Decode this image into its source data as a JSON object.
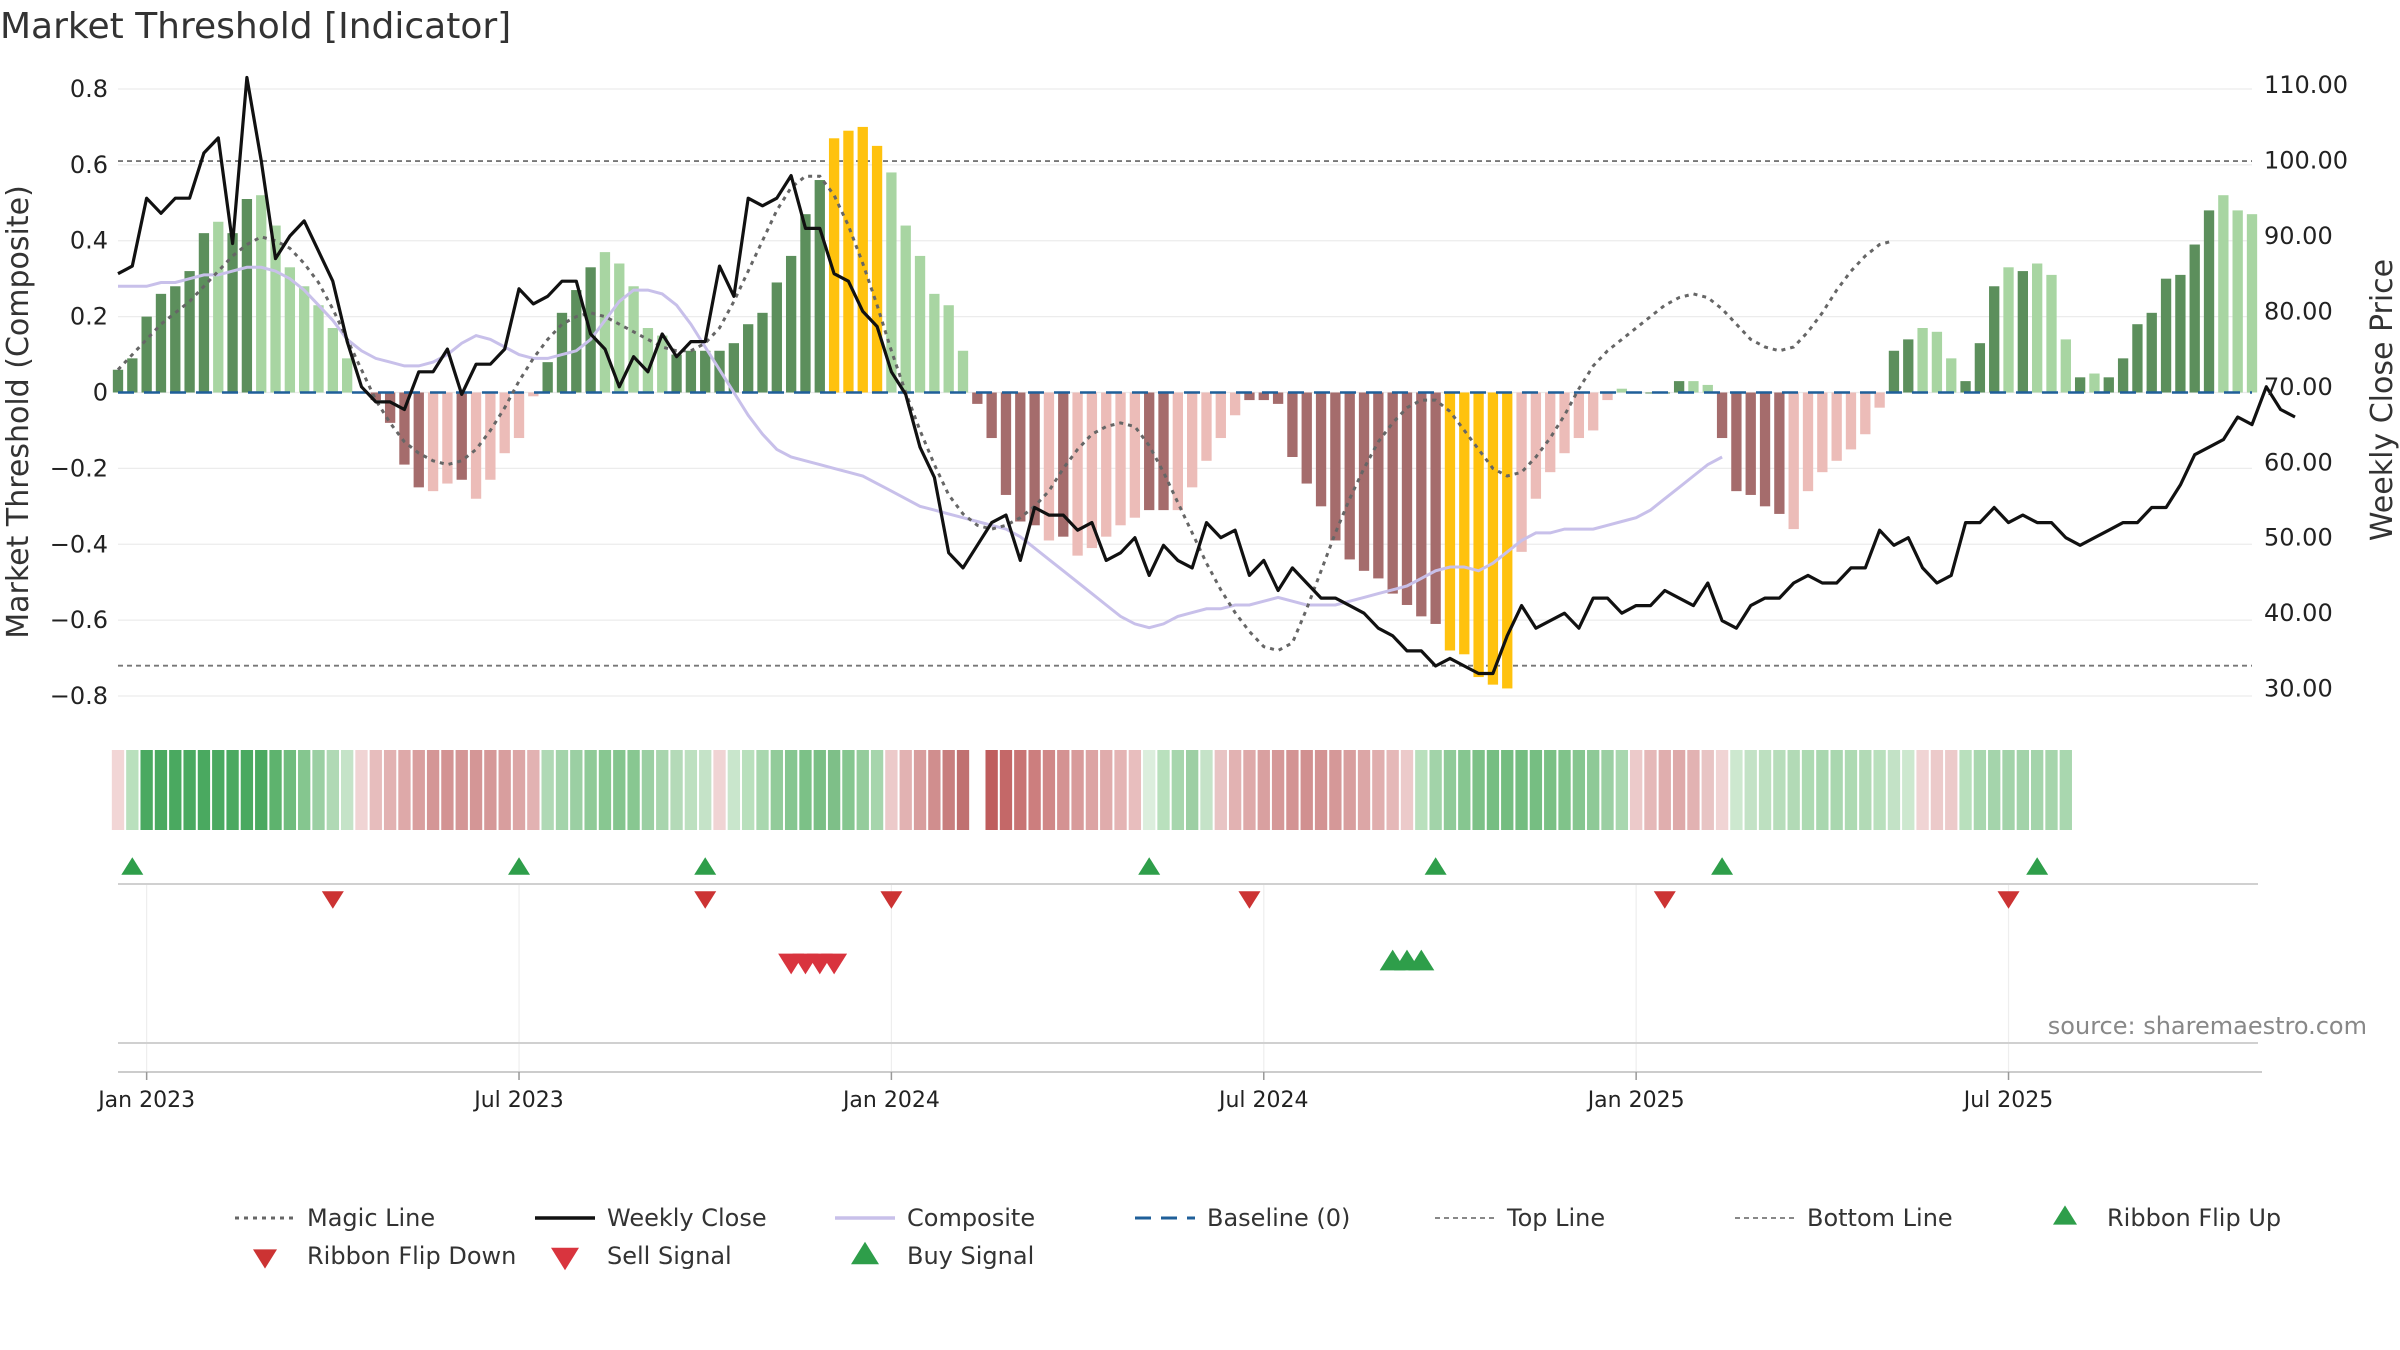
{
  "title": "Market Threshold [Indicator]",
  "source_label": "source: sharemaestro.com",
  "colors": {
    "bar_pos_strong": "#5c8f5c",
    "bar_pos_weak": "#a8d5a2",
    "bar_neg_strong": "#a56c6c",
    "bar_neg_weak": "#ecbcb8",
    "bar_extreme": "#ffc20e",
    "weekly_close": "#111111",
    "magic_line": "#666666",
    "composite": "#c8c0ea",
    "baseline": "#1f5f99",
    "ref_lines": "#777777",
    "buy": "#2e9e4a",
    "sell": "#d9343e",
    "flip_up": "#2e9e4a",
    "flip_down": "#cc3333"
  },
  "chart_data": {
    "type": "bar",
    "title": "Market Threshold [Indicator]",
    "ylabel_left": "Market Threshold (Composite)",
    "ylabel_right": "Weekly Close Price",
    "ylim_left": [
      -0.85,
      0.85
    ],
    "ylim_right": [
      26.5,
      112
    ],
    "left_ticks": [
      {
        "v": 0.8,
        "label": "0.8"
      },
      {
        "v": 0.6,
        "label": "0.6"
      },
      {
        "v": 0.4,
        "label": "0.4"
      },
      {
        "v": 0.2,
        "label": "0.2"
      },
      {
        "v": 0,
        "label": "0"
      },
      {
        "v": -0.2,
        "label": "−0.2"
      },
      {
        "v": -0.4,
        "label": "−0.4"
      },
      {
        "v": -0.6,
        "label": "−0.6"
      },
      {
        "v": -0.8,
        "label": "−0.8"
      }
    ],
    "right_ticks": [
      {
        "v": 110,
        "label": "110.00"
      },
      {
        "v": 100,
        "label": "100.00"
      },
      {
        "v": 90,
        "label": "90.00"
      },
      {
        "v": 80,
        "label": "80.00"
      },
      {
        "v": 70,
        "label": "70.00"
      },
      {
        "v": 60,
        "label": "60.00"
      },
      {
        "v": 50,
        "label": "50.00"
      },
      {
        "v": 40,
        "label": "40.00"
      },
      {
        "v": 30,
        "label": "30.00"
      }
    ],
    "x_ticks": [
      {
        "week": 2,
        "label": "Jan 2023"
      },
      {
        "week": 28,
        "label": "Jul 2023"
      },
      {
        "week": 54,
        "label": "Jan 2024"
      },
      {
        "week": 80,
        "label": "Jul 2024"
      },
      {
        "week": 106,
        "label": "Jan 2025"
      },
      {
        "week": 132,
        "label": "Jul 2025"
      }
    ],
    "top_line": 0.61,
    "bottom_line": -0.72,
    "baseline": 0,
    "composite_bars": [
      0.06,
      0.09,
      0.2,
      0.26,
      0.28,
      0.32,
      0.42,
      0.45,
      0.42,
      0.51,
      0.52,
      0.44,
      0.33,
      0.28,
      0.23,
      0.17,
      0.09,
      0.0,
      -0.02,
      -0.08,
      -0.19,
      -0.25,
      -0.26,
      -0.24,
      -0.23,
      -0.28,
      -0.23,
      -0.16,
      -0.12,
      -0.01,
      0.08,
      0.21,
      0.27,
      0.33,
      0.37,
      0.34,
      0.28,
      0.17,
      0.15,
      0.1,
      0.11,
      0.11,
      0.11,
      0.13,
      0.18,
      0.21,
      0.29,
      0.36,
      0.47,
      0.56,
      0.67,
      0.69,
      0.7,
      0.65,
      0.58,
      0.44,
      0.36,
      0.26,
      0.23,
      0.11,
      -0.03,
      -0.12,
      -0.27,
      -0.34,
      -0.35,
      -0.39,
      -0.38,
      -0.43,
      -0.41,
      -0.38,
      -0.35,
      -0.33,
      -0.31,
      -0.31,
      -0.31,
      -0.25,
      -0.18,
      -0.12,
      -0.06,
      -0.02,
      -0.02,
      -0.03,
      -0.17,
      -0.24,
      -0.3,
      -0.39,
      -0.44,
      -0.47,
      -0.49,
      -0.53,
      -0.56,
      -0.59,
      -0.61,
      -0.68,
      -0.69,
      -0.75,
      -0.77,
      -0.78,
      -0.42,
      -0.28,
      -0.21,
      -0.16,
      -0.12,
      -0.1,
      -0.02,
      0.01,
      0.0,
      0.0,
      0.0,
      0.03,
      0.03,
      0.02,
      -0.12,
      -0.26,
      -0.27,
      -0.3,
      -0.32,
      -0.36,
      -0.26,
      -0.21,
      -0.18,
      -0.15,
      -0.11,
      -0.04,
      0.11,
      0.14,
      0.17,
      0.16,
      0.09,
      0.03,
      0.13,
      0.28,
      0.33,
      0.32,
      0.34,
      0.31,
      0.14,
      0.04,
      0.05,
      0.04,
      0.09,
      0.18,
      0.21,
      0.3,
      0.31,
      0.39,
      0.48,
      0.52,
      0.48,
      0.47
    ],
    "weekly_close": [
      85,
      86,
      95,
      93,
      95,
      95,
      101,
      103,
      89,
      111,
      100,
      87,
      90,
      92,
      88,
      84,
      76,
      70,
      68,
      68,
      67,
      72,
      72,
      75,
      69,
      73,
      73,
      75,
      83,
      81,
      82,
      84,
      84,
      77,
      75,
      70,
      74,
      72,
      77,
      74,
      76,
      76,
      86,
      82,
      95,
      94,
      95,
      98,
      91,
      91,
      85,
      84,
      80,
      78,
      72,
      69,
      62,
      58,
      48,
      46,
      49,
      52,
      53,
      47,
      54,
      53,
      53,
      51,
      52,
      47,
      48,
      50,
      45,
      49,
      47,
      46,
      52,
      50,
      51,
      45,
      47,
      43,
      46,
      44,
      42,
      42,
      41,
      40,
      38,
      37,
      35,
      35,
      33,
      34,
      33,
      32,
      32,
      37,
      41,
      38,
      39,
      40,
      38,
      42,
      42,
      40,
      41,
      41,
      43,
      42,
      41,
      44,
      39,
      38,
      41,
      42,
      42,
      44,
      45,
      44,
      44,
      46,
      46,
      51,
      49,
      50,
      46,
      44,
      45,
      52,
      52,
      54,
      52,
      53,
      52,
      52,
      50,
      49,
      50,
      51,
      52,
      52,
      54,
      54,
      57,
      61,
      62,
      63,
      66,
      65,
      70,
      67,
      66
    ],
    "magic_line": [
      0.06,
      0.1,
      0.14,
      0.18,
      0.21,
      0.24,
      0.28,
      0.32,
      0.36,
      0.39,
      0.41,
      0.4,
      0.38,
      0.34,
      0.29,
      0.22,
      0.14,
      0.06,
      -0.02,
      -0.08,
      -0.13,
      -0.16,
      -0.18,
      -0.19,
      -0.18,
      -0.15,
      -0.1,
      -0.04,
      0.03,
      0.09,
      0.14,
      0.18,
      0.2,
      0.21,
      0.2,
      0.18,
      0.16,
      0.14,
      0.12,
      0.11,
      0.11,
      0.13,
      0.17,
      0.24,
      0.32,
      0.4,
      0.48,
      0.54,
      0.57,
      0.57,
      0.52,
      0.44,
      0.34,
      0.23,
      0.11,
      0.0,
      -0.1,
      -0.19,
      -0.27,
      -0.32,
      -0.35,
      -0.36,
      -0.35,
      -0.33,
      -0.3,
      -0.26,
      -0.2,
      -0.15,
      -0.11,
      -0.09,
      -0.08,
      -0.09,
      -0.14,
      -0.21,
      -0.29,
      -0.37,
      -0.45,
      -0.52,
      -0.58,
      -0.63,
      -0.67,
      -0.68,
      -0.66,
      -0.57,
      -0.47,
      -0.37,
      -0.28,
      -0.2,
      -0.13,
      -0.08,
      -0.04,
      -0.02,
      -0.02,
      -0.05,
      -0.1,
      -0.15,
      -0.2,
      -0.22,
      -0.21,
      -0.17,
      -0.12,
      -0.06,
      0.01,
      0.07,
      0.11,
      0.14,
      0.17,
      0.2,
      0.23,
      0.25,
      0.26,
      0.25,
      0.22,
      0.18,
      0.14,
      0.12,
      0.11,
      0.12,
      0.16,
      0.21,
      0.27,
      0.32,
      0.36,
      0.39,
      0.4
    ],
    "composite_line": [
      0.28,
      0.28,
      0.28,
      0.29,
      0.29,
      0.3,
      0.31,
      0.31,
      0.32,
      0.33,
      0.33,
      0.32,
      0.3,
      0.27,
      0.23,
      0.19,
      0.14,
      0.11,
      0.09,
      0.08,
      0.07,
      0.07,
      0.08,
      0.1,
      0.13,
      0.15,
      0.14,
      0.12,
      0.1,
      0.09,
      0.09,
      0.1,
      0.11,
      0.14,
      0.19,
      0.24,
      0.27,
      0.27,
      0.26,
      0.23,
      0.18,
      0.12,
      0.06,
      0.0,
      -0.06,
      -0.11,
      -0.15,
      -0.17,
      -0.18,
      -0.19,
      -0.2,
      -0.21,
      -0.22,
      -0.24,
      -0.26,
      -0.28,
      -0.3,
      -0.31,
      -0.32,
      -0.33,
      -0.34,
      -0.35,
      -0.36,
      -0.38,
      -0.41,
      -0.44,
      -0.47,
      -0.5,
      -0.53,
      -0.56,
      -0.59,
      -0.61,
      -0.62,
      -0.61,
      -0.59,
      -0.58,
      -0.57,
      -0.57,
      -0.56,
      -0.56,
      -0.55,
      -0.54,
      -0.55,
      -0.56,
      -0.56,
      -0.56,
      -0.55,
      -0.54,
      -0.53,
      -0.52,
      -0.51,
      -0.49,
      -0.47,
      -0.46,
      -0.46,
      -0.47,
      -0.45,
      -0.42,
      -0.39,
      -0.37,
      -0.37,
      -0.36,
      -0.36,
      -0.36,
      -0.35,
      -0.34,
      -0.33,
      -0.31,
      -0.28,
      -0.25,
      -0.22,
      -0.19,
      -0.17
    ],
    "ribbon_colors": [
      "#f2d6d6",
      "#b9e0bd",
      "#4aa960",
      "#4aa960",
      "#4aa960",
      "#4aa960",
      "#4aa960",
      "#4aa960",
      "#4aa960",
      "#4aa960",
      "#4aa960",
      "#5eb36e",
      "#70bc7e",
      "#85c68f",
      "#9bcfa3",
      "#b0d9b5",
      "#c5e3c8",
      "#f0d4d4",
      "#e7bdbd",
      "#e2b2b2",
      "#dea9a9",
      "#d99f9f",
      "#d49696",
      "#d39393",
      "#d49696",
      "#d49696",
      "#d59898",
      "#d89e9e",
      "#dca6a6",
      "#e2b2b2",
      "#b0d9b5",
      "#a4d4ab",
      "#9bcfa3",
      "#8fca98",
      "#88c791",
      "#84c58e",
      "#88c791",
      "#9bcfa3",
      "#a8d5ae",
      "#b4dab8",
      "#bde0c0",
      "#c5e3c8",
      "#f0d4d4",
      "#c9e6cc",
      "#b9e0bd",
      "#a9d7af",
      "#92cb9a",
      "#86c690",
      "#7cc187",
      "#7abf85",
      "#7ebf88",
      "#86c690",
      "#95cc9c",
      "#a6d5ac",
      "#eccaca",
      "#e2b2b2",
      "#d89e9e",
      "#d08e8e",
      "#c87e7e",
      "#c07070",
      "#ffffff",
      "#bf5c5c",
      "#c46868",
      "#c87474",
      "#cc7e7e",
      "#d08888",
      "#d49292",
      "#d89b9b",
      "#dca4a4",
      "#e0acac",
      "#e4b4b4",
      "#e8bebe",
      "#dceedd",
      "#b9e0bd",
      "#a7d6ad",
      "#9dcfa4",
      "#c5e3c8",
      "#e8c4c4",
      "#e2b2b2",
      "#dea9a9",
      "#d9a0a0",
      "#d59898",
      "#d39393",
      "#d19090",
      "#d39393",
      "#d59898",
      "#d89e9e",
      "#dca6a6",
      "#e0aeae",
      "#e5b8b8",
      "#eccaca",
      "#b9e0bd",
      "#a2d3a9",
      "#8fca98",
      "#86c690",
      "#7cc187",
      "#76be82",
      "#74bd80",
      "#74bd80",
      "#76be82",
      "#7ac084",
      "#80c38a",
      "#86c690",
      "#8ec997",
      "#9bcfa3",
      "#a9d7af",
      "#eccaca",
      "#e5b8b8",
      "#e0aeae",
      "#dea9a9",
      "#e2b2b2",
      "#e8c4c4",
      "#f0d4d4",
      "#cde8cf",
      "#c3e2c6",
      "#bde0c0",
      "#b7ddbb",
      "#b2dab6",
      "#addab2",
      "#a9d7af",
      "#a9d7af",
      "#addab2",
      "#b2dab6",
      "#b9e0bd",
      "#c3e2c6",
      "#cde8cf",
      "#f0d4d4",
      "#eccaca",
      "#eccaca",
      "#b9e0bd",
      "#a9d7af",
      "#a4d4ab",
      "#a2d3a9",
      "#a2d3a9",
      "#a4d4ab",
      "#a6d5ac",
      "#a9d7af"
    ],
    "ribbon_flip_up": [
      1,
      28,
      41,
      72,
      92,
      112,
      134
    ],
    "ribbon_flip_down": [
      15,
      41,
      54,
      79,
      108,
      132
    ],
    "sell_signals": [
      47,
      48,
      49,
      50
    ],
    "buy_signals": [
      89,
      90,
      91
    ]
  },
  "legend": [
    {
      "label": "Magic Line",
      "kind": "dotted",
      "color": "#666666"
    },
    {
      "label": "Weekly Close",
      "kind": "solid",
      "color": "#111111"
    },
    {
      "label": "Composite",
      "kind": "solid-light",
      "color": "#c8c0ea"
    },
    {
      "label": "Baseline (0)",
      "kind": "dashed",
      "color": "#1f5f99"
    },
    {
      "label": "Top Line",
      "kind": "thin-dashed",
      "color": "#888888"
    },
    {
      "label": "Bottom Line",
      "kind": "thin-dashed",
      "color": "#888888"
    },
    {
      "label": "Ribbon Flip Up",
      "kind": "tri-up",
      "color": "#2e9e4a"
    },
    {
      "label": "Ribbon Flip Down",
      "kind": "tri-down",
      "color": "#cc3333"
    },
    {
      "label": "Sell Signal",
      "kind": "tri-down-big",
      "color": "#d9343e"
    },
    {
      "label": "Buy Signal",
      "kind": "tri-up-big",
      "color": "#2e9e4a"
    }
  ]
}
